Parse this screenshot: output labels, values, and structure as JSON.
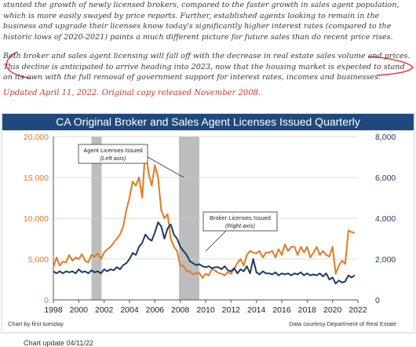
{
  "text": {
    "para1": "stunted the growth of newly licensed brokers, compared to the faster growth in sales agent population, which is more easily swayed by price reports. Further, established agents looking to remain in the business and upgrade their licenses know today's significantly higher interest rates (compared to the historic lows of 2020-2021) paints a much different picture for future sales than do recent price rises.",
    "para2": "Both broker and sales agent licensing will fall off with the decrease in real estate sales volume and prices. This decline is anticipated to arrive heading into 2023, now that the housing market is expected to stand on its own with the full removal of government support for interest rates, incomes and businesses.",
    "updated": "Updated April 11, 2022. Original copy released November 2008.",
    "chart_update": "Chart update 04/11/22"
  },
  "chart_data": {
    "type": "line",
    "title": "CA Original Broker and Sales Agent Licenses Issued Quarterly",
    "source_left": "Chart by first tuesday",
    "source_right": "Data courtesy Department of Real Estate",
    "x_ticks": [
      "1998",
      "2000",
      "2002",
      "2004",
      "2006",
      "2008",
      "2010",
      "2012",
      "2014",
      "2016",
      "2018",
      "2020",
      "2022"
    ],
    "y_left_ticks": [
      "0",
      "5,000",
      "10,000",
      "15,000",
      "20,000"
    ],
    "y_right_ticks": [
      "0",
      "2,000",
      "4,000",
      "6,000",
      "8,000"
    ],
    "x_range": [
      1998,
      2022
    ],
    "y_left_range": [
      0,
      20000
    ],
    "y_right_range": [
      0,
      8000
    ],
    "recessions": [
      [
        2001.0,
        2001.8
      ],
      [
        2007.9,
        2009.5
      ]
    ],
    "colors": {
      "agent": "#e07b22",
      "broker": "#1f3a5f",
      "title_bg": "#1f497d",
      "recession": "#bdbdbd"
    },
    "annotations": [
      {
        "line1": "Agent Licenses Issued",
        "line2": "(Left axis)"
      },
      {
        "line1": "Broker Licenses Issued",
        "line2": "(Right axis)"
      }
    ],
    "series": [
      {
        "name": "Agent Licenses Issued",
        "axis": "left",
        "color": "#e07b22",
        "x": [
          1998,
          1998.25,
          1998.5,
          1998.75,
          1999,
          1999.25,
          1999.5,
          1999.75,
          2000,
          2000.25,
          2000.5,
          2000.75,
          2001,
          2001.25,
          2001.5,
          2001.75,
          2002,
          2002.25,
          2002.5,
          2002.75,
          2003,
          2003.25,
          2003.5,
          2003.75,
          2004,
          2004.25,
          2004.5,
          2004.75,
          2005,
          2005.25,
          2005.5,
          2005.75,
          2006,
          2006.25,
          2006.5,
          2006.75,
          2007,
          2007.25,
          2007.5,
          2007.75,
          2008,
          2008.25,
          2008.5,
          2008.75,
          2009,
          2009.25,
          2009.5,
          2009.75,
          2010,
          2010.25,
          2010.5,
          2010.75,
          2011,
          2011.25,
          2011.5,
          2011.75,
          2012,
          2012.25,
          2012.5,
          2012.75,
          2013,
          2013.25,
          2013.5,
          2013.75,
          2014,
          2014.25,
          2014.5,
          2014.75,
          2015,
          2015.25,
          2015.5,
          2015.75,
          2016,
          2016.25,
          2016.5,
          2016.75,
          2017,
          2017.25,
          2017.5,
          2017.75,
          2018,
          2018.25,
          2018.5,
          2018.75,
          2019,
          2019.25,
          2019.5,
          2019.75,
          2020,
          2020.25,
          2020.5,
          2020.75,
          2021,
          2021.25,
          2021.5,
          2021.75
        ],
        "values": [
          4000,
          5200,
          4200,
          4700,
          4600,
          5500,
          4800,
          5200,
          5000,
          5600,
          4800,
          4600,
          5500,
          5300,
          5700,
          5000,
          5800,
          6200,
          6500,
          7000,
          7500,
          8000,
          9000,
          11000,
          12500,
          14500,
          14000,
          15000,
          12500,
          18500,
          15500,
          14000,
          16500,
          15000,
          11000,
          10000,
          10500,
          7500,
          6500,
          6000,
          4200,
          4200,
          3500,
          3500,
          3100,
          3300,
          3300,
          2700,
          3200,
          3000,
          3800,
          3600,
          3300,
          3200,
          3000,
          3400,
          3200,
          3800,
          4500,
          5000,
          4200,
          5500,
          6000,
          5800,
          5700,
          6000,
          5200,
          5800,
          5800,
          6000,
          5200,
          6200,
          5500,
          6800,
          6000,
          6500,
          6500,
          5500,
          6500,
          5800,
          6500,
          5200,
          5800,
          6500,
          5500,
          6000,
          5500,
          5300,
          6500,
          3200,
          4200,
          4800,
          4400,
          8500,
          8300,
          8200
        ]
      },
      {
        "name": "Broker Licenses Issued",
        "axis": "right",
        "color": "#1f3a5f",
        "x": [
          1998,
          1998.25,
          1998.5,
          1998.75,
          1999,
          1999.25,
          1999.5,
          1999.75,
          2000,
          2000.25,
          2000.5,
          2000.75,
          2001,
          2001.25,
          2001.5,
          2001.75,
          2002,
          2002.25,
          2002.5,
          2002.75,
          2003,
          2003.25,
          2003.5,
          2003.75,
          2004,
          2004.25,
          2004.5,
          2004.75,
          2005,
          2005.25,
          2005.5,
          2005.75,
          2006,
          2006.25,
          2006.5,
          2006.75,
          2007,
          2007.25,
          2007.5,
          2007.75,
          2008,
          2008.25,
          2008.5,
          2008.75,
          2009,
          2009.25,
          2009.5,
          2009.75,
          2010,
          2010.25,
          2010.5,
          2010.75,
          2011,
          2011.25,
          2011.5,
          2011.75,
          2012,
          2012.25,
          2012.5,
          2012.75,
          2013,
          2013.25,
          2013.5,
          2013.75,
          2014,
          2014.25,
          2014.5,
          2014.75,
          2015,
          2015.25,
          2015.5,
          2015.75,
          2016,
          2016.25,
          2016.5,
          2016.75,
          2017,
          2017.25,
          2017.5,
          2017.75,
          2018,
          2018.25,
          2018.5,
          2018.75,
          2019,
          2019.25,
          2019.5,
          2019.75,
          2020,
          2020.25,
          2020.5,
          2020.75,
          2021,
          2021.25,
          2021.5,
          2021.75
        ],
        "values": [
          1400,
          1300,
          1400,
          1300,
          1400,
          1350,
          1400,
          1300,
          1500,
          1350,
          1400,
          1300,
          1450,
          1350,
          1400,
          1300,
          1500,
          1400,
          1500,
          1450,
          1600,
          1500,
          1700,
          1800,
          2000,
          2300,
          2200,
          2600,
          2800,
          3200,
          3000,
          2900,
          3300,
          3800,
          3600,
          3000,
          3500,
          3700,
          3200,
          3000,
          2600,
          2400,
          2200,
          1900,
          1800,
          1700,
          1750,
          1650,
          1600,
          1650,
          1550,
          1600,
          1600,
          1500,
          1650,
          1450,
          1400,
          1550,
          1300,
          1500,
          1400,
          1650,
          1300,
          2000,
          1350,
          1250,
          1400,
          1300,
          1300,
          1250,
          1350,
          1200,
          1300,
          1250,
          1300,
          1200,
          1300,
          1250,
          1350,
          1200,
          1300,
          1200,
          1250,
          1200,
          1300,
          1150,
          1300,
          1000,
          1100,
          800,
          950,
          850,
          900,
          1200,
          1100,
          1200
        ]
      }
    ]
  }
}
